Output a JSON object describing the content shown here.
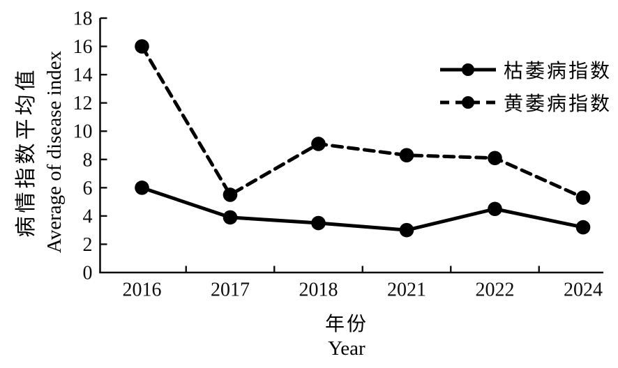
{
  "chart_data": {
    "type": "line",
    "categories": [
      "2016",
      "2017",
      "2018",
      "2021",
      "2022",
      "2024"
    ],
    "series": [
      {
        "name": "枯萎病指数",
        "style": "solid",
        "values": [
          6.0,
          3.9,
          3.5,
          3.0,
          4.5,
          3.2
        ]
      },
      {
        "name": "黄萎病指数",
        "style": "dashed",
        "values": [
          16.0,
          5.5,
          9.1,
          8.3,
          8.1,
          5.3
        ]
      }
    ],
    "xlabel_zh": "年份",
    "xlabel_en": "Year",
    "ylabel_zh": "病情指数平均值",
    "ylabel_en": "Average of disease index",
    "ylim": [
      0,
      18
    ],
    "ytick_step": 2,
    "grid": false,
    "legend_position": "upper right",
    "line_color": "#000000",
    "background": "#ffffff",
    "marker": "filled-circle"
  }
}
